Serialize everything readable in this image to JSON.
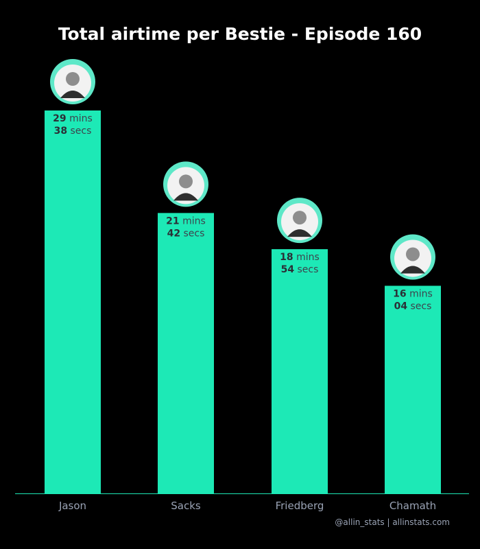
{
  "chart_data": {
    "type": "bar",
    "title": "Total airtime per Bestie - Episode 160",
    "categories": [
      "Jason",
      "Sacks",
      "Friedberg",
      "Chamath"
    ],
    "values": [
      29.633,
      21.7,
      18.9,
      16.067
    ],
    "value_labels": [
      {
        "mins": "29",
        "mins_unit": "mins",
        "secs": "38",
        "secs_unit": "secs"
      },
      {
        "mins": "21",
        "mins_unit": "mins",
        "secs": "42",
        "secs_unit": "secs"
      },
      {
        "mins": "18",
        "mins_unit": "mins",
        "secs": "54",
        "secs_unit": "secs"
      },
      {
        "mins": "16",
        "mins_unit": "mins",
        "secs": "04",
        "secs_unit": "secs"
      }
    ],
    "avatars": [
      "person-photo-icon",
      "person-photo-icon",
      "person-photo-icon",
      "person-photo-icon"
    ],
    "xlabel": "",
    "ylabel": "",
    "ylim": [
      0,
      29.633
    ],
    "grid": false,
    "legend": "none",
    "colors": {
      "background": "#000000",
      "bar": "#1de9b6",
      "avatar_ring": "#5ee8c8",
      "baseline": "#1de9b6"
    }
  },
  "credit": "@allin_stats | allinstats.com"
}
